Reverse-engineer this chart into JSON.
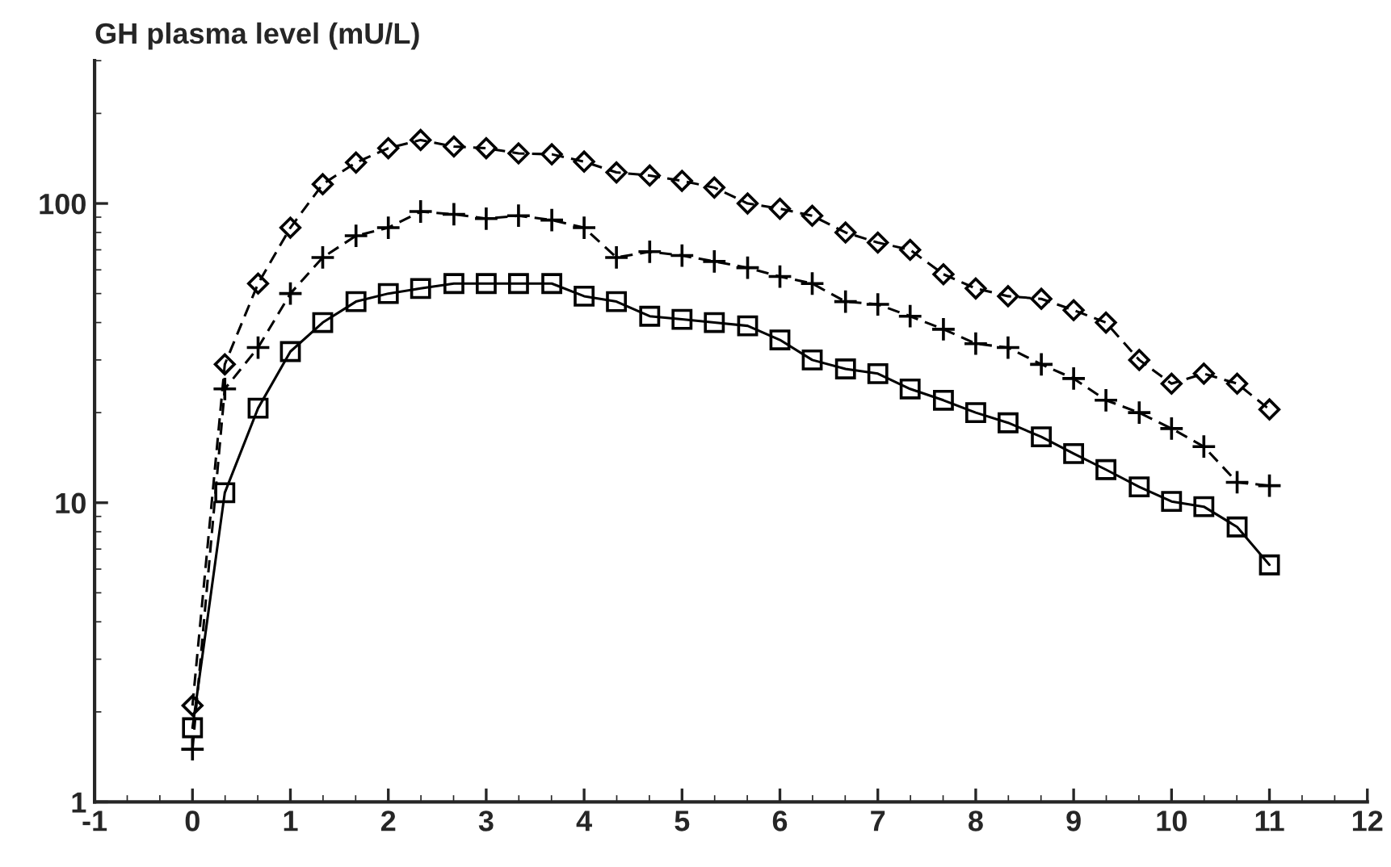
{
  "chart_data": {
    "type": "line",
    "ylabel": "GH plasma level (mU/L)",
    "x": [
      0,
      0.33,
      0.67,
      1,
      1.33,
      1.67,
      2,
      2.33,
      2.67,
      3,
      3.33,
      3.67,
      4,
      4.33,
      4.67,
      5,
      5.33,
      5.67,
      6,
      6.33,
      6.67,
      7,
      7.33,
      7.67,
      8,
      8.33,
      8.67,
      9,
      9.33,
      9.67,
      10,
      10.33,
      10.67,
      11
    ],
    "series": [
      {
        "color": "#000000",
        "marker": "diamond",
        "line_style": "dashed",
        "values": [
          2.1,
          29,
          54,
          83,
          116,
          137,
          153,
          163,
          155,
          153,
          147,
          146,
          138,
          127,
          124,
          119,
          113,
          100,
          96,
          91,
          80,
          74,
          70,
          58,
          52,
          49,
          48,
          44,
          40,
          30,
          25,
          27,
          25,
          20.5
        ]
      },
      {
        "color": "#000000",
        "marker": "cross",
        "line_style": "dashed",
        "values": [
          1.5,
          24,
          33,
          50,
          66,
          78,
          83,
          94,
          92,
          89,
          91,
          88,
          83,
          66,
          69,
          67,
          64,
          61,
          57,
          54,
          47,
          46,
          42,
          38,
          34,
          33,
          29,
          26,
          22,
          20,
          17.7,
          15.4,
          11.7,
          11.4
        ]
      },
      {
        "color": "#000000",
        "marker": "square",
        "line_style": "solid",
        "values": [
          1.77,
          10.8,
          20.7,
          32,
          40,
          47,
          50,
          52,
          54,
          54,
          54,
          54,
          49,
          47,
          42,
          41,
          40,
          39,
          35,
          30,
          28,
          27,
          24,
          22,
          20,
          18.5,
          16.6,
          14.6,
          12.9,
          11.3,
          10.1,
          9.7,
          8.3,
          6.2
        ]
      }
    ],
    "log": "y",
    "xlim": [
      -1,
      12
    ],
    "xticks": [
      -1,
      0,
      1,
      2,
      3,
      4,
      5,
      6,
      7,
      8,
      9,
      10,
      11,
      12
    ],
    "ylim": [
      1,
      300
    ],
    "yticks": [
      1,
      10,
      100
    ],
    "grid": false,
    "legend": false
  }
}
